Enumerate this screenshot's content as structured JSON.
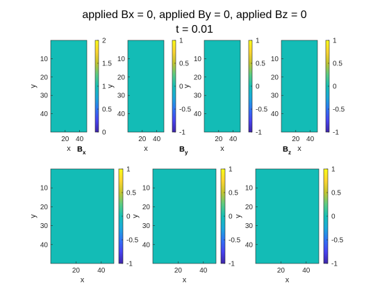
{
  "figure": {
    "title_line1": "applied Bx = 0, applied By = 0, applied Bz = 0",
    "title_line2": "t = 0.01"
  },
  "colors": {
    "field": "#13bcb6",
    "axis": "#262626",
    "colormap": [
      "#3e26a8",
      "#4743f0",
      "#2f74f4",
      "#1ba9da",
      "#15bfb6",
      "#5acb83",
      "#c1c42f",
      "#fbd431",
      "#f9fb15"
    ]
  },
  "chart_data": [
    {
      "type": "heatmap",
      "panel": "top-1",
      "value": 1,
      "xlabel": "x",
      "ylabel": "y",
      "xticks": [
        "20",
        "40"
      ],
      "yticks": [
        "10",
        "20",
        "30",
        "40"
      ],
      "xlim": [
        0,
        50
      ],
      "ylim": [
        0,
        50
      ],
      "y_reversed": true,
      "clim": [
        0,
        2
      ],
      "colorbar_ticks": [
        "0",
        "0.5",
        "1",
        "1.5",
        "2"
      ],
      "label_main": "B",
      "label_sub": "x"
    },
    {
      "type": "heatmap",
      "panel": "top-2",
      "value": 0,
      "xlabel": "x",
      "ylabel": "y",
      "xticks": [
        "20",
        "40"
      ],
      "yticks": [
        "10",
        "20",
        "30",
        "40"
      ],
      "xlim": [
        0,
        50
      ],
      "ylim": [
        0,
        50
      ],
      "y_reversed": true,
      "clim": [
        -1,
        1
      ],
      "colorbar_ticks": [
        "-1",
        "-0.5",
        "0",
        "0.5",
        "1"
      ],
      "label_main": "B",
      "label_sub": "y"
    },
    {
      "type": "heatmap",
      "panel": "top-3",
      "value": 0,
      "xlabel": "x",
      "ylabel": "y",
      "xticks": [
        "20",
        "40"
      ],
      "yticks": [
        "10",
        "20",
        "30",
        "40"
      ],
      "xlim": [
        0,
        50
      ],
      "ylim": [
        0,
        50
      ],
      "y_reversed": true,
      "clim": [
        -1,
        1
      ],
      "colorbar_ticks": [
        "-1",
        "-0.5",
        "0",
        "0.5",
        "1"
      ],
      "label_main": "",
      "label_sub": ""
    },
    {
      "type": "heatmap",
      "panel": "top-4",
      "value": 0,
      "xlabel": "x",
      "ylabel": "",
      "xticks": [
        "20",
        "40"
      ],
      "yticks": [
        "10",
        "20",
        "30",
        "40"
      ],
      "xlim": [
        0,
        50
      ],
      "ylim": [
        0,
        50
      ],
      "y_reversed": true,
      "clim": [
        -1,
        1
      ],
      "colorbar_ticks": [
        "-1",
        "-0.5",
        "0",
        "0.5",
        "1"
      ],
      "label_main": "B",
      "label_sub": "z"
    },
    {
      "type": "heatmap",
      "panel": "bottom-1",
      "value": 0,
      "xlabel": "x",
      "ylabel": "y",
      "xticks": [
        "20",
        "40"
      ],
      "yticks": [
        "10",
        "20",
        "30",
        "40"
      ],
      "xlim": [
        0,
        50
      ],
      "ylim": [
        0,
        50
      ],
      "y_reversed": true,
      "clim": [
        -1,
        1
      ],
      "colorbar_ticks": [
        "-1",
        "-0.5",
        "0",
        "0.5",
        "1"
      ],
      "label_main": "",
      "label_sub": ""
    },
    {
      "type": "heatmap",
      "panel": "bottom-2",
      "value": 0,
      "xlabel": "x",
      "ylabel": "y",
      "xticks": [
        "20",
        "40"
      ],
      "yticks": [
        "10",
        "20",
        "30",
        "40"
      ],
      "xlim": [
        0,
        50
      ],
      "ylim": [
        0,
        50
      ],
      "y_reversed": true,
      "clim": [
        -1,
        1
      ],
      "colorbar_ticks": [
        "-1",
        "-0.5",
        "0",
        "0.5",
        "1"
      ],
      "label_main": "",
      "label_sub": ""
    },
    {
      "type": "heatmap",
      "panel": "bottom-3",
      "value": 0,
      "xlabel": "x",
      "ylabel": "y",
      "xticks": [
        "20",
        "40"
      ],
      "yticks": [
        "10",
        "20",
        "30",
        "40"
      ],
      "xlim": [
        0,
        50
      ],
      "ylim": [
        0,
        50
      ],
      "y_reversed": true,
      "clim": [
        -1,
        1
      ],
      "colorbar_ticks": [
        "-1",
        "-0.5",
        "0",
        "0.5",
        "1"
      ],
      "label_main": "",
      "label_sub": ""
    }
  ]
}
